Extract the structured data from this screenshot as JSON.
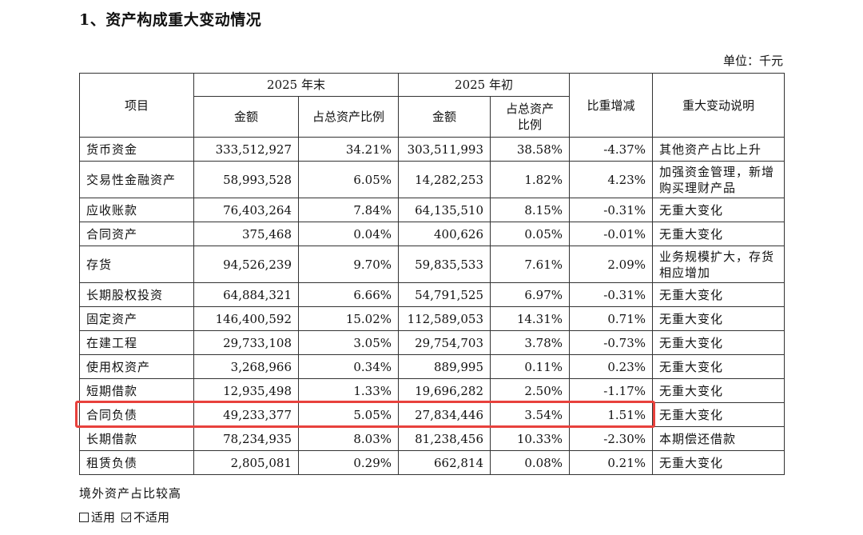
{
  "heading": "1、资产构成重大变动情况",
  "unit": "单位：千元",
  "table": {
    "h_item": "项目",
    "h_end": "2025 年末",
    "h_begin": "2025 年初",
    "h_change": "比重增减",
    "h_note": "重大变动说明",
    "h_amount": "金额",
    "h_ratio_end": "占总资产比例",
    "h_amount2": "金额",
    "h_ratio_begin": "占总资产比例",
    "rows": [
      {
        "item": "货币资金",
        "end_amt": "333,512,927",
        "end_ratio": "34.21%",
        "begin_amt": "303,511,993",
        "begin_ratio": "38.58%",
        "change": "-4.37%",
        "note": "其他资产占比上升"
      },
      {
        "item": "交易性金融资产",
        "end_amt": "58,993,528",
        "end_ratio": "6.05%",
        "begin_amt": "14,282,253",
        "begin_ratio": "1.82%",
        "change": "4.23%",
        "note": "加强资金管理，新增购买理财产品"
      },
      {
        "item": "应收账款",
        "end_amt": "76,403,264",
        "end_ratio": "7.84%",
        "begin_amt": "64,135,510",
        "begin_ratio": "8.15%",
        "change": "-0.31%",
        "note": "无重大变化"
      },
      {
        "item": "合同资产",
        "end_amt": "375,468",
        "end_ratio": "0.04%",
        "begin_amt": "400,626",
        "begin_ratio": "0.05%",
        "change": "-0.01%",
        "note": "无重大变化"
      },
      {
        "item": "存货",
        "end_amt": "94,526,239",
        "end_ratio": "9.70%",
        "begin_amt": "59,835,533",
        "begin_ratio": "7.61%",
        "change": "2.09%",
        "note": "业务规模扩大，存货相应增加"
      },
      {
        "item": "长期股权投资",
        "end_amt": "64,884,321",
        "end_ratio": "6.66%",
        "begin_amt": "54,791,525",
        "begin_ratio": "6.97%",
        "change": "-0.31%",
        "note": "无重大变化"
      },
      {
        "item": "固定资产",
        "end_amt": "146,400,592",
        "end_ratio": "15.02%",
        "begin_amt": "112,589,053",
        "begin_ratio": "14.31%",
        "change": "0.71%",
        "note": "无重大变化"
      },
      {
        "item": "在建工程",
        "end_amt": "29,733,108",
        "end_ratio": "3.05%",
        "begin_amt": "29,754,703",
        "begin_ratio": "3.78%",
        "change": "-0.73%",
        "note": "无重大变化"
      },
      {
        "item": "使用权资产",
        "end_amt": "3,268,966",
        "end_ratio": "0.34%",
        "begin_amt": "889,995",
        "begin_ratio": "0.11%",
        "change": "0.23%",
        "note": "无重大变化"
      },
      {
        "item": "短期借款",
        "end_amt": "12,935,498",
        "end_ratio": "1.33%",
        "begin_amt": "19,696,282",
        "begin_ratio": "2.50%",
        "change": "-1.17%",
        "note": "无重大变化"
      },
      {
        "item": "合同负债",
        "end_amt": "49,233,377",
        "end_ratio": "5.05%",
        "begin_amt": "27,834,446",
        "begin_ratio": "3.54%",
        "change": "1.51%",
        "note": "无重大变化"
      },
      {
        "item": "长期借款",
        "end_amt": "78,234,935",
        "end_ratio": "8.03%",
        "begin_amt": "81,238,456",
        "begin_ratio": "10.33%",
        "change": "-2.30%",
        "note": "本期偿还借款"
      },
      {
        "item": "租赁负债",
        "end_amt": "2,805,081",
        "end_ratio": "0.29%",
        "begin_amt": "662,814",
        "begin_ratio": "0.08%",
        "change": "0.21%",
        "note": "无重大变化"
      }
    ]
  },
  "footer": {
    "text": "境外资产占比较高",
    "opt_applicable": "适用",
    "opt_not_applicable": "不适用"
  },
  "colors": {
    "highlight": "#e8413c"
  }
}
